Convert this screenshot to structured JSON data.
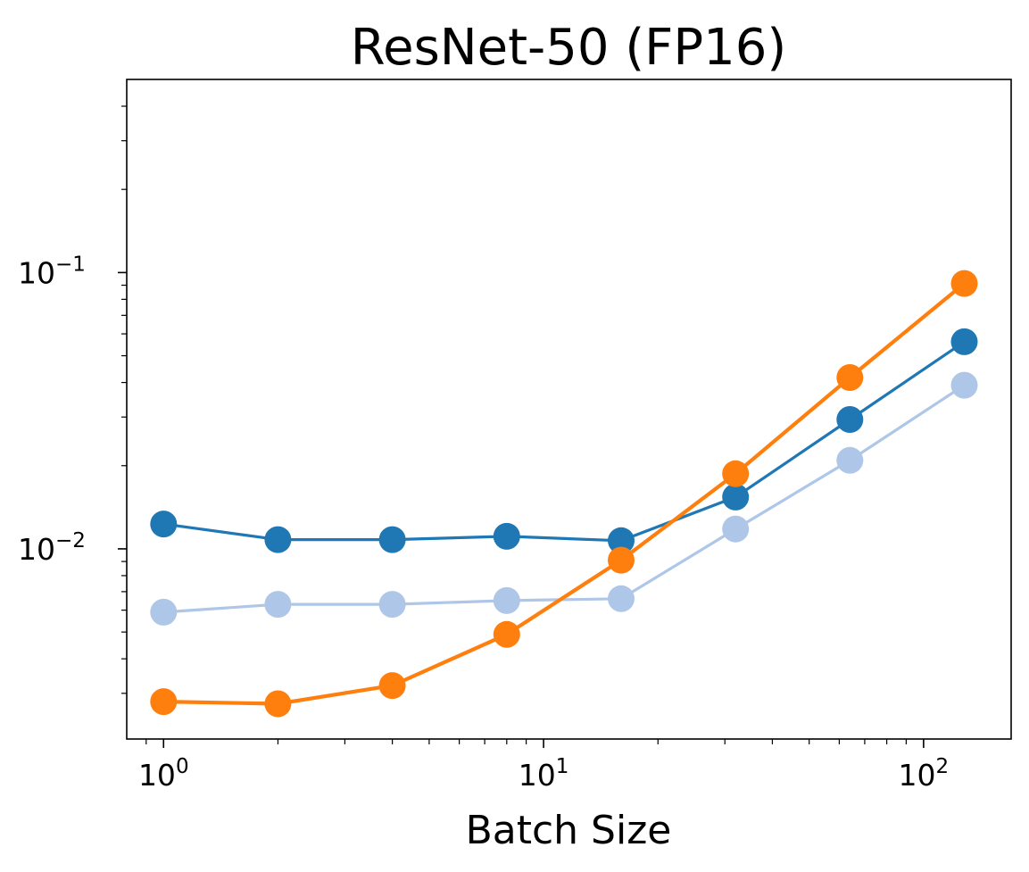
{
  "chart_data": {
    "type": "line",
    "title": "ResNet-50 (FP16)",
    "xlabel": "Batch Size",
    "ylabel": "",
    "xscale": "log",
    "yscale": "log",
    "xlim": [
      0.8,
      170
    ],
    "ylim": [
      0.00205,
      0.5
    ],
    "grid": false,
    "x": [
      1,
      2,
      4,
      8,
      16,
      32,
      64,
      128
    ],
    "x_ticks": [
      {
        "value": 1,
        "base": "10",
        "exp": "0"
      },
      {
        "value": 10,
        "base": "10",
        "exp": "1"
      },
      {
        "value": 100,
        "base": "10",
        "exp": "2"
      }
    ],
    "y_ticks": [
      {
        "value": 0.01,
        "base": "10",
        "exp": "−2"
      },
      {
        "value": 0.1,
        "base": "10",
        "exp": "−1"
      }
    ],
    "series": [
      {
        "color": "#1f77b4",
        "values": [
          0.0123,
          0.0108,
          0.0108,
          0.0111,
          0.0107,
          0.0154,
          0.0294,
          0.0562
        ]
      },
      {
        "color": "#aec7e8",
        "values": [
          0.0059,
          0.0063,
          0.0063,
          0.0065,
          0.0066,
          0.0118,
          0.0209,
          0.0391
        ]
      },
      {
        "color": "#ff7f0e",
        "values": [
          0.0028,
          0.00275,
          0.0032,
          0.0049,
          0.0091,
          0.0187,
          0.0417,
          0.0913
        ]
      }
    ]
  }
}
